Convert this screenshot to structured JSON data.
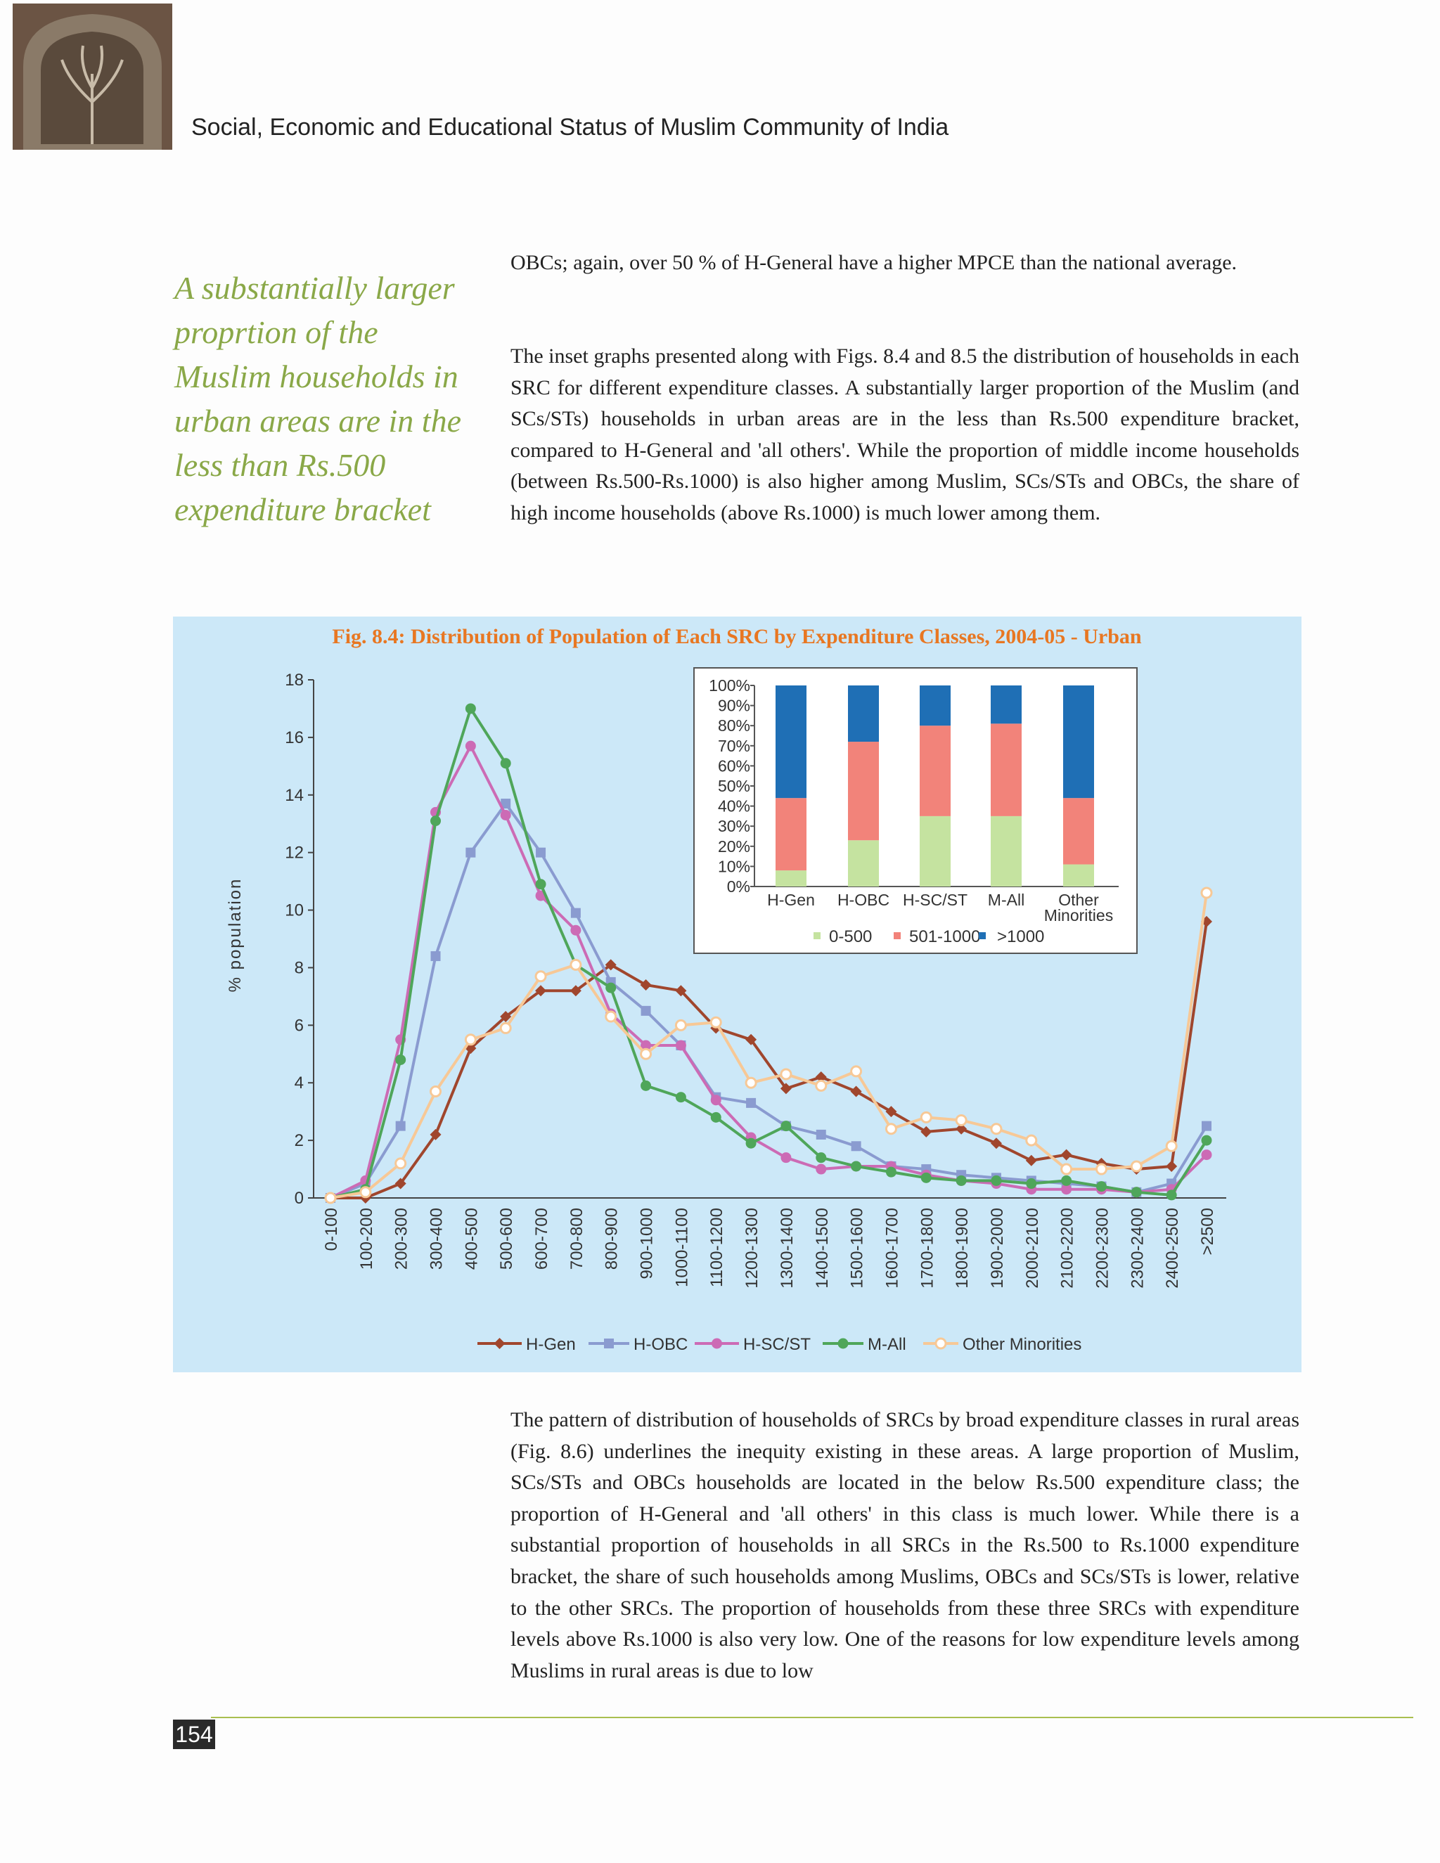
{
  "header": {
    "title": "Social, Economic and Educational Status of Muslim Community of India"
  },
  "sidebar": {
    "quote": "A substantially larger proprtion of the Muslim households in urban areas are in the less than Rs.500 expenditure bracket"
  },
  "paragraphs": [
    "OBCs; again, over 50 % of H-General have a higher MPCE than the national average.",
    "The inset graphs presented along with Figs. 8.4 and 8.5 the distribution of households in each SRC for different expenditure classes. A substantially larger proportion of the Muslim (and SCs/STs) households in urban areas are in the less than Rs.500 expenditure bracket, compared to H-General and 'all others'. While the proportion of middle income households (between Rs.500-Rs.1000) is also higher among Muslim, SCs/STs and OBCs, the share of high income households (above Rs.1000) is much lower among them.",
    "The pattern of distribution of households of SRCs by broad expenditure classes in rural areas (Fig. 8.6) underlines the inequity existing in these areas. A large proportion of Muslim, SCs/STs and OBCs households are located in the below Rs.500 expenditure class; the proportion of H-General and 'all others' in this class is much lower. While there is a substantial proportion of households in all SRCs in the Rs.500 to Rs.1000 expenditure bracket, the share of such households among Muslims, OBCs and SCs/STs is lower, relative to the other SRCs. The proportion of households from these three SRCs with expenditure levels above Rs.1000 is also very low. One of the reasons for low expenditure levels among Muslims in rural areas is due to low"
  ],
  "chart_data": [
    {
      "type": "line",
      "title": "Fig. 8.4: Distribution of Population of Each SRC by Expenditure Classes, 2004-05 - Urban",
      "y_label": "% population",
      "categories": [
        "0-100",
        "100-200",
        "200-300",
        "300-400",
        "400-500",
        "500-600",
        "600-700",
        "700-800",
        "800-900",
        "900-1000",
        "1000-1100",
        "1100-1200",
        "1200-1300",
        "1300-1400",
        "1400-1500",
        "1500-1600",
        "1600-1700",
        "1700-1800",
        "1800-1900",
        "1900-2000",
        "2000-2100",
        "2100-2200",
        "2200-2300",
        "2300-2400",
        "2400-2500",
        ">2500"
      ],
      "series": [
        {
          "name": "H-Gen",
          "color": "#a0462d",
          "marker": "diamond",
          "values": [
            0,
            0,
            0.5,
            2.2,
            5.2,
            6.3,
            7.2,
            7.2,
            8.1,
            7.4,
            7.2,
            5.9,
            5.5,
            3.8,
            4.2,
            3.7,
            3.0,
            2.3,
            2.4,
            1.9,
            1.3,
            1.5,
            1.2,
            1.0,
            1.1,
            9.6
          ]
        },
        {
          "name": "H-OBC",
          "color": "#8a9bd0",
          "marker": "square",
          "values": [
            0,
            0.5,
            2.5,
            8.4,
            12.0,
            13.7,
            12.0,
            9.9,
            7.5,
            6.5,
            5.3,
            3.5,
            3.3,
            2.5,
            2.2,
            1.8,
            1.1,
            1.0,
            0.8,
            0.7,
            0.6,
            0.5,
            0.4,
            0.2,
            0.5,
            2.5
          ]
        },
        {
          "name": "H-SC/ST",
          "color": "#cc6bb5",
          "marker": "circle",
          "values": [
            0,
            0.6,
            5.5,
            13.4,
            15.7,
            13.3,
            10.5,
            9.3,
            6.4,
            5.3,
            5.3,
            3.4,
            2.1,
            1.4,
            1.0,
            1.1,
            1.1,
            0.8,
            0.6,
            0.5,
            0.3,
            0.3,
            0.3,
            0.2,
            0.3,
            1.5
          ]
        },
        {
          "name": "M-All",
          "color": "#4fa65a",
          "marker": "circle",
          "values": [
            0,
            0.3,
            4.8,
            13.1,
            17.0,
            15.1,
            10.9,
            8.1,
            7.3,
            3.9,
            3.5,
            2.8,
            1.9,
            2.5,
            1.4,
            1.1,
            0.9,
            0.7,
            0.6,
            0.6,
            0.5,
            0.6,
            0.4,
            0.2,
            0.1,
            2.0
          ]
        },
        {
          "name": "Other Minorities",
          "color": "#f7c896",
          "marker": "open-circle",
          "values": [
            0,
            0.2,
            1.2,
            3.7,
            5.5,
            5.9,
            7.7,
            8.1,
            6.3,
            5.0,
            6.0,
            6.1,
            4.0,
            4.3,
            3.9,
            4.4,
            2.4,
            2.8,
            2.7,
            2.4,
            2.0,
            1.0,
            1.0,
            1.1,
            1.8,
            10.6
          ]
        }
      ],
      "ylim": [
        0,
        18
      ],
      "yticks": [
        0,
        2,
        4,
        6,
        8,
        10,
        12,
        14,
        16,
        18
      ],
      "grid": false,
      "legend": "bottom"
    },
    {
      "type": "stacked-bar",
      "categories": [
        "H-Gen",
        "H-OBC",
        "H-SC/ST",
        "M-All",
        "Other Minorities"
      ],
      "series": [
        {
          "name": "0-500",
          "color": "#c5e3a0",
          "values": [
            8,
            23,
            35,
            35,
            11
          ]
        },
        {
          "name": "501-1000",
          "color": "#f2837a",
          "values": [
            36,
            49,
            45,
            46,
            33
          ]
        },
        {
          "name": ">1000",
          "color": "#1f6fb5",
          "values": [
            56,
            28,
            20,
            19,
            56
          ]
        }
      ],
      "ylim": [
        0,
        100
      ],
      "yticks": [
        {
          "value": 0,
          "label": "0%"
        },
        {
          "value": 10,
          "label": "10%"
        },
        {
          "value": 20,
          "label": "20%"
        },
        {
          "value": 30,
          "label": "30%"
        },
        {
          "value": 40,
          "label": "40%"
        },
        {
          "value": 50,
          "label": "50%"
        },
        {
          "value": 60,
          "label": "60%"
        },
        {
          "value": 70,
          "label": "70%"
        },
        {
          "value": 80,
          "label": "80%"
        },
        {
          "value": 90,
          "label": "90%"
        },
        {
          "value": 100,
          "label": "100%"
        }
      ],
      "grid": false,
      "legend": "bottom"
    }
  ],
  "footer": {
    "page_number": "154"
  }
}
